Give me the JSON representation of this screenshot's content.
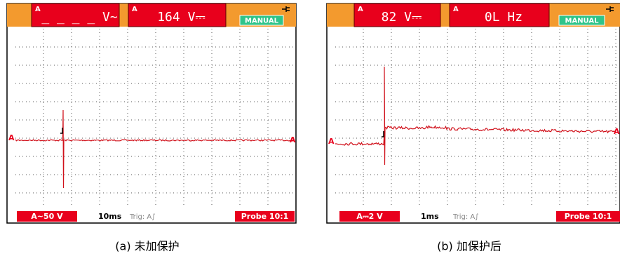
{
  "panels": [
    {
      "readings": [
        {
          "channel": "A",
          "value": "_ _ _ _ V~"
        },
        {
          "channel": "A",
          "value": "164 V⎓"
        }
      ],
      "mode": "MANUAL",
      "trace_label_left": "A",
      "trace_label_right": "A",
      "footer": {
        "scale": "A~50 V",
        "timebase": "10ms",
        "trigger": "Trig: A∫",
        "probe": "Probe 10:1"
      },
      "caption": "(a)  未加保护"
    },
    {
      "readings": [
        {
          "channel": "A",
          "value": "82 V⎓"
        },
        {
          "channel": "A",
          "value": "0L Hz"
        }
      ],
      "mode": "MANUAL",
      "trace_label_left": "A",
      "trace_label_right": "A",
      "footer": {
        "scale": "A⎓2 V",
        "timebase": "1ms",
        "trigger": "Trig: A∫",
        "probe": "Probe 10:1"
      },
      "caption": "(b)  加保护后"
    }
  ]
}
